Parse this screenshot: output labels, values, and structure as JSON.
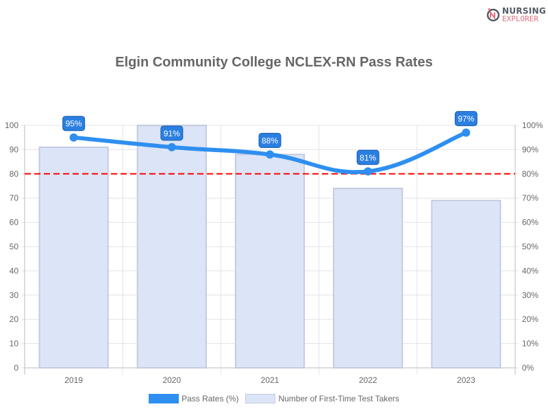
{
  "logo": {
    "line1": "NURSING",
    "line2": "EXPLORER"
  },
  "chart_data": {
    "type": "bar+line",
    "title": "Elgin Community College NCLEX-RN Pass Rates",
    "categories": [
      "2019",
      "2020",
      "2021",
      "2022",
      "2023"
    ],
    "series": [
      {
        "name": "Pass Rates (%)",
        "type": "line",
        "axis": "right",
        "values": [
          95,
          91,
          88,
          81,
          97
        ],
        "color": "#2e8ff0",
        "data_labels": [
          "95%",
          "91%",
          "88%",
          "81%",
          "97%"
        ]
      },
      {
        "name": "Number of First-Time Test Takers",
        "type": "bar",
        "axis": "left",
        "values": [
          91,
          100,
          88,
          74,
          69
        ],
        "color": "#dce4f7"
      }
    ],
    "left_axis": {
      "ylim": [
        0,
        100
      ],
      "ticks": [
        "0",
        "10",
        "20",
        "30",
        "40",
        "50",
        "60",
        "70",
        "80",
        "90",
        "100"
      ]
    },
    "right_axis": {
      "ylim": [
        0,
        100
      ],
      "ticks": [
        "0%",
        "10%",
        "20%",
        "30%",
        "40%",
        "50%",
        "60%",
        "70%",
        "80%",
        "90%",
        "100%"
      ]
    },
    "reference_line": {
      "value": 80,
      "color": "#ff0000",
      "style": "dashed"
    },
    "grid": true,
    "legend": "bottom"
  }
}
